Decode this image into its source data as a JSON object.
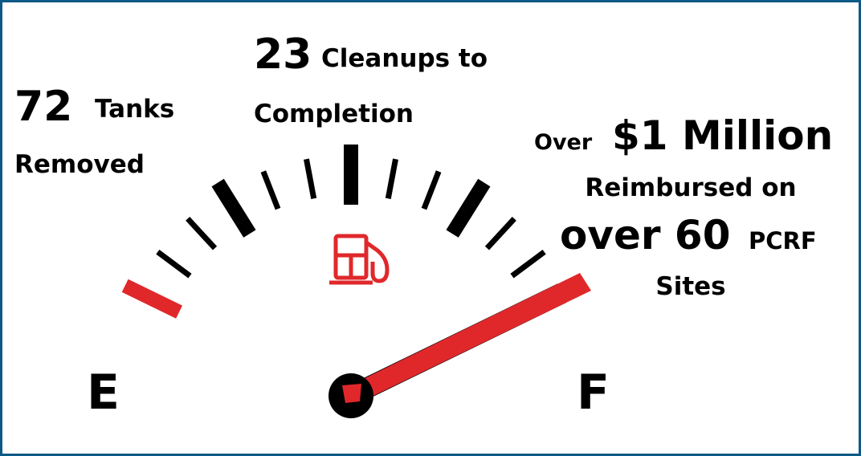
{
  "stats": [
    {
      "number": "72",
      "label": "Tanks",
      "label2": "Removed"
    },
    {
      "number": "23",
      "label": "Cleanups to",
      "label2": "Completion"
    },
    {
      "prefix": "Over",
      "number": "$1 Million",
      "label": "Reimbursed on",
      "number2": "over 60",
      "label2": "PCRF",
      "label3": "Sites"
    }
  ],
  "gauge": {
    "empty": "E",
    "full": "F"
  }
}
